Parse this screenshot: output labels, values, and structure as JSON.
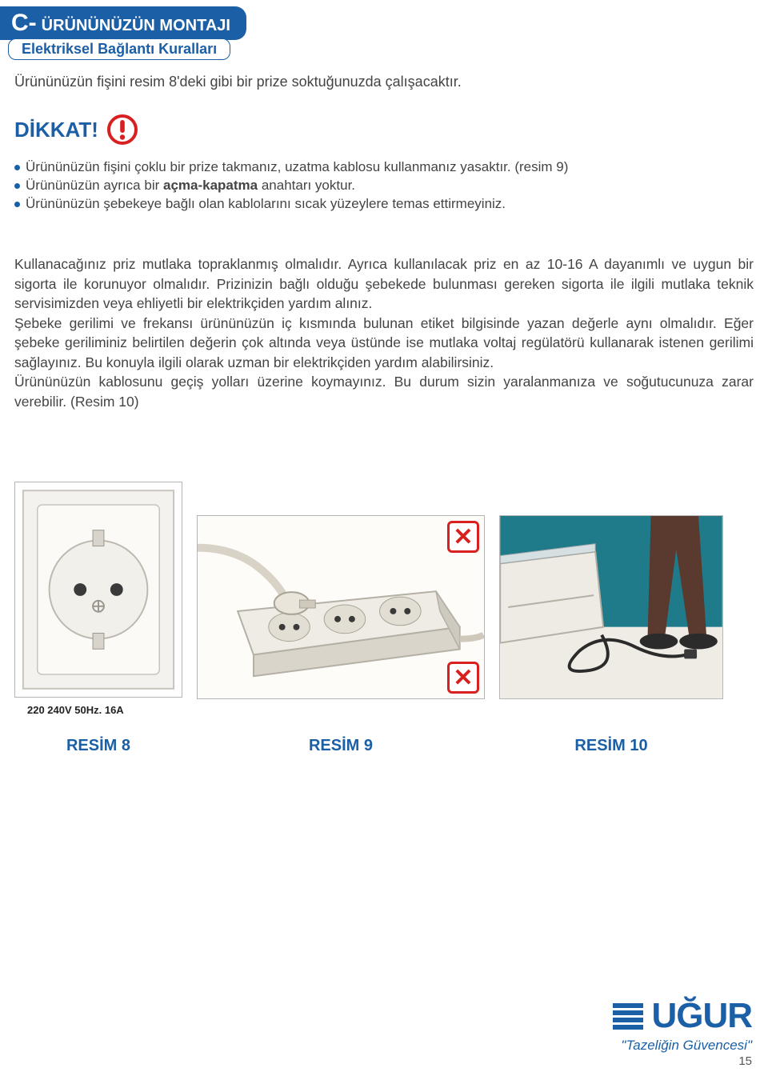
{
  "colors": {
    "brand_blue": "#1b5fa6",
    "text_body": "#444444",
    "error_red": "#d92020",
    "border_gray": "#b5b5b5",
    "bg_white": "#ffffff",
    "teal_wall": "#1f7a8a"
  },
  "section": {
    "prefix": "C-",
    "title": "ÜRÜNÜNÜZÜN MONTAJI"
  },
  "subheading": "Elektriksel Bağlantı Kuralları",
  "intro": "Ürününüzün fişini resim 8'deki gibi bir prize soktuğunuzda çalışacaktır.",
  "dikkat": "DİKKAT!",
  "bullets": [
    {
      "pre": "Ürününüzün fişini çoklu bir prize takmanız, uzatma kablosu kullanmanız yasaktır. (resim 9)"
    },
    {
      "pre": "Ürününüzün ayrıca bir ",
      "bold": "açma-kapatma",
      "post": " anahtarı yoktur."
    },
    {
      "pre": "Ürününüzün şebekeye bağlı olan kablolarını sıcak yüzeylere temas ettirmeyiniz."
    }
  ],
  "paragraph": "Kullanacağınız priz mutlaka topraklanmış olmalıdır. Ayrıca kullanılacak priz en az 10-16 A dayanımlı ve uygun bir sigorta ile korunuyor olmalıdır. Prizinizin bağlı olduğu şebekede bulunması gereken sigorta ile ilgili mutlaka teknik servisimizden veya ehliyetli bir elektrikçiden yardım alınız.\nŞebeke gerilimi ve frekansı ürününüzün iç kısmında bulunan etiket bilgisinde yazan değerle aynı olmalıdır. Eğer şebeke geriliminiz belirtilen değerin çok altında veya üstünde ise mutlaka voltaj regülatörü kullanarak istenen gerilimi sağlayınız. Bu konuyla ilgili olarak uzman bir elektrikçiden yardım alabilirsiniz.\nÜrününüzün kablosunu geçiş yolları üzerine koymayınız. Bu durum sizin yaralanmanıza ve soğutucunuza zarar verebilir. (Resim 10)",
  "figures": {
    "fig8": {
      "caption": "RESİM 8",
      "spec": "220 240V 50Hz. 16A"
    },
    "fig9": {
      "caption": "RESİM 9"
    },
    "fig10": {
      "caption": "RESİM 10"
    }
  },
  "x_mark": "✕",
  "logo": {
    "name": "UĞUR",
    "slogan": "\"Tazeliğin Güvencesi\""
  },
  "page_number": "15"
}
